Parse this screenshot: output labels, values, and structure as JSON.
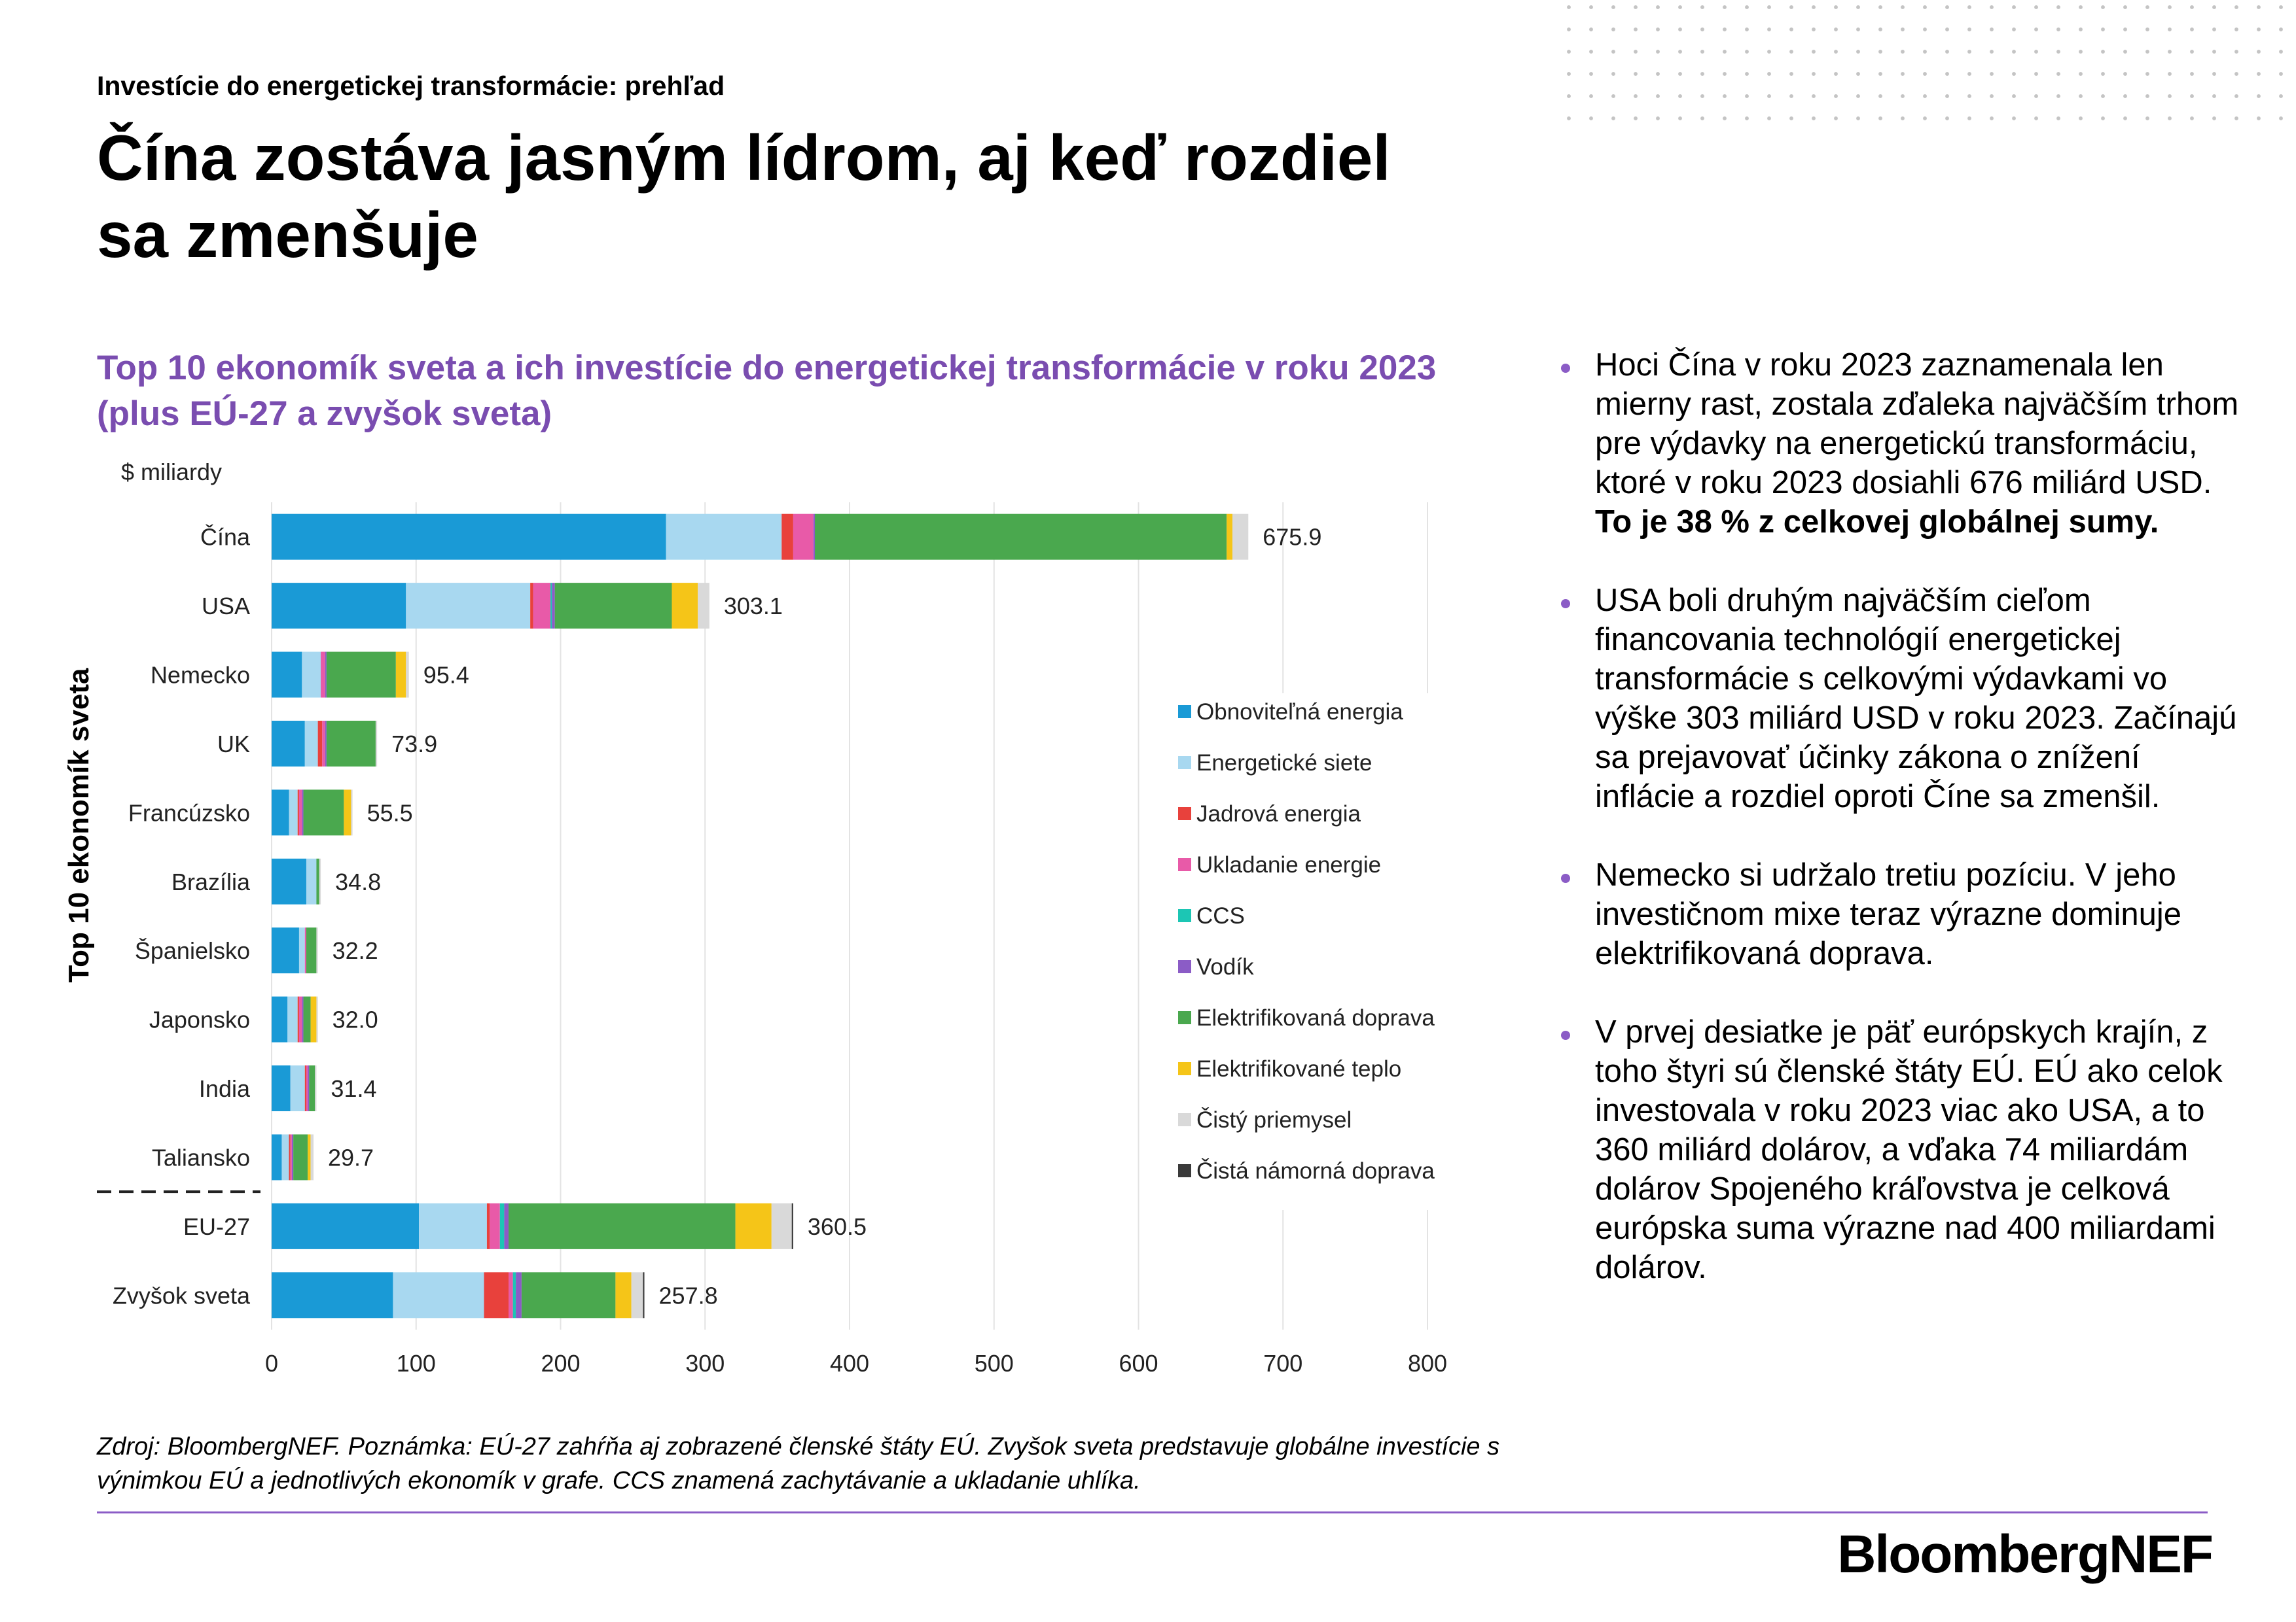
{
  "header": {
    "kicker": "Investície do energetickej transformácie: prehľad",
    "title": "Čína zostáva jasným lídrom, aj keď rozdiel sa zmenšuje"
  },
  "chart_data": {
    "type": "bar",
    "orientation": "horizontal",
    "stacked": true,
    "title": "Top 10 ekonomík sveta a ich investície do energetickej transformácie v roku 2023 (plus EÚ-27 a zvyšok sveta)",
    "unit_label": "$ miliardy",
    "ylabel": "Top 10 ekonomík sveta",
    "xlim": [
      0,
      800
    ],
    "xticks": [
      0,
      100,
      200,
      300,
      400,
      500,
      600,
      700,
      800
    ],
    "grid": true,
    "legend_position": "right",
    "categories": [
      "Čína",
      "USA",
      "Nemecko",
      "UK",
      "Francúzsko",
      "Brazília",
      "Španielsko",
      "Japonsko",
      "India",
      "Taliansko",
      "EU-27",
      "Zvyšok sveta"
    ],
    "totals": [
      "675.9",
      "303.1",
      "95.4",
      "73.9",
      "55.5",
      "34.8",
      "32.2",
      "32.0",
      "31.4",
      "29.7",
      "360.5",
      "257.8"
    ],
    "separator_after_index": 9,
    "series": [
      {
        "name": "Obnoviteľná energia",
        "color": "#1a9ad6",
        "values": [
          273,
          93,
          21,
          23,
          12,
          24,
          19,
          11,
          13,
          7,
          102,
          84
        ]
      },
      {
        "name": "Energetické siete",
        "color": "#a8d8f0",
        "values": [
          80,
          86,
          13,
          9,
          6,
          7,
          4,
          7,
          10,
          5,
          47,
          63
        ]
      },
      {
        "name": "Jadrová energia",
        "color": "#e8413c",
        "values": [
          8,
          2,
          0,
          3,
          1,
          0,
          0,
          1,
          1,
          1,
          2,
          17
        ]
      },
      {
        "name": "Ukladanie energie",
        "color": "#e85aa8",
        "values": [
          14,
          12,
          3,
          2,
          2,
          0,
          1,
          2,
          1,
          1,
          7,
          3
        ]
      },
      {
        "name": "CCS",
        "color": "#1cc6b4",
        "values": [
          0,
          1,
          0,
          0,
          0,
          0,
          0,
          0,
          0,
          0,
          3,
          2
        ]
      },
      {
        "name": "Vodík",
        "color": "#8b5cc6",
        "values": [
          1,
          2,
          1,
          1,
          1,
          0,
          0,
          1,
          1,
          1,
          3,
          4
        ]
      },
      {
        "name": "Elektrifikovaná doprava",
        "color": "#4aa84e",
        "values": [
          285,
          81,
          48,
          34,
          28,
          2,
          7,
          5,
          4,
          10,
          157,
          65
        ]
      },
      {
        "name": "Elektrifikované teplo",
        "color": "#f5c518",
        "values": [
          4,
          18,
          7,
          0,
          5,
          0,
          0,
          4,
          0,
          2,
          25,
          11
        ]
      },
      {
        "name": "Čistý priemysel",
        "color": "#d9d9d9",
        "values": [
          11,
          8,
          2,
          1,
          1,
          1,
          1,
          1,
          1,
          2,
          14,
          8
        ]
      },
      {
        "name": "Čistá námorná doprava",
        "color": "#3a3a3a",
        "values": [
          0,
          0,
          0,
          0,
          0,
          0,
          0,
          0,
          0,
          0,
          1,
          1
        ]
      }
    ]
  },
  "bullets": [
    {
      "text": "Hoci Čína v roku 2023 zaznamenala len mierny rast, zostala zďaleka najväčším trhom pre výdavky na energetickú transformáciu, ktoré v roku 2023 dosiahli 676 miliárd USD.",
      "bold": "To je 38 % z celkovej globálnej sumy."
    },
    {
      "text": "USA boli druhým najväčším cieľom financovania technológií energetickej transformácie s celkovými výdavkami vo výške 303 miliárd USD v roku 2023. Začínajú sa prejavovať účinky zákona o znížení inflácie a rozdiel oproti Číne sa zmenšil."
    },
    {
      "text": "Nemecko si udržalo tretiu pozíciu. V jeho investičnom mixe teraz výrazne dominuje elektrifikovaná doprava."
    },
    {
      "text": "V prvej desiatke je päť európskych krajín, z toho štyri sú členské štáty EÚ. EÚ ako celok investovala v roku 2023 viac ako USA, a to 360 miliárd dolárov, a vďaka 74 miliardám dolárov Spojeného kráľovstva je celková európska suma výrazne nad 400 miliardami dolárov."
    }
  ],
  "footnote": "Zdroj: BloombergNEF. Poznámka: EÚ-27 zahŕňa aj zobrazené členské štáty EÚ. Zvyšok sveta predstavuje globálne investície s výnimkou EÚ a jednotlivých ekonomík v grafe. CCS znamená zachytávanie a ukladanie uhlíka.",
  "brand": "BloombergNEF"
}
